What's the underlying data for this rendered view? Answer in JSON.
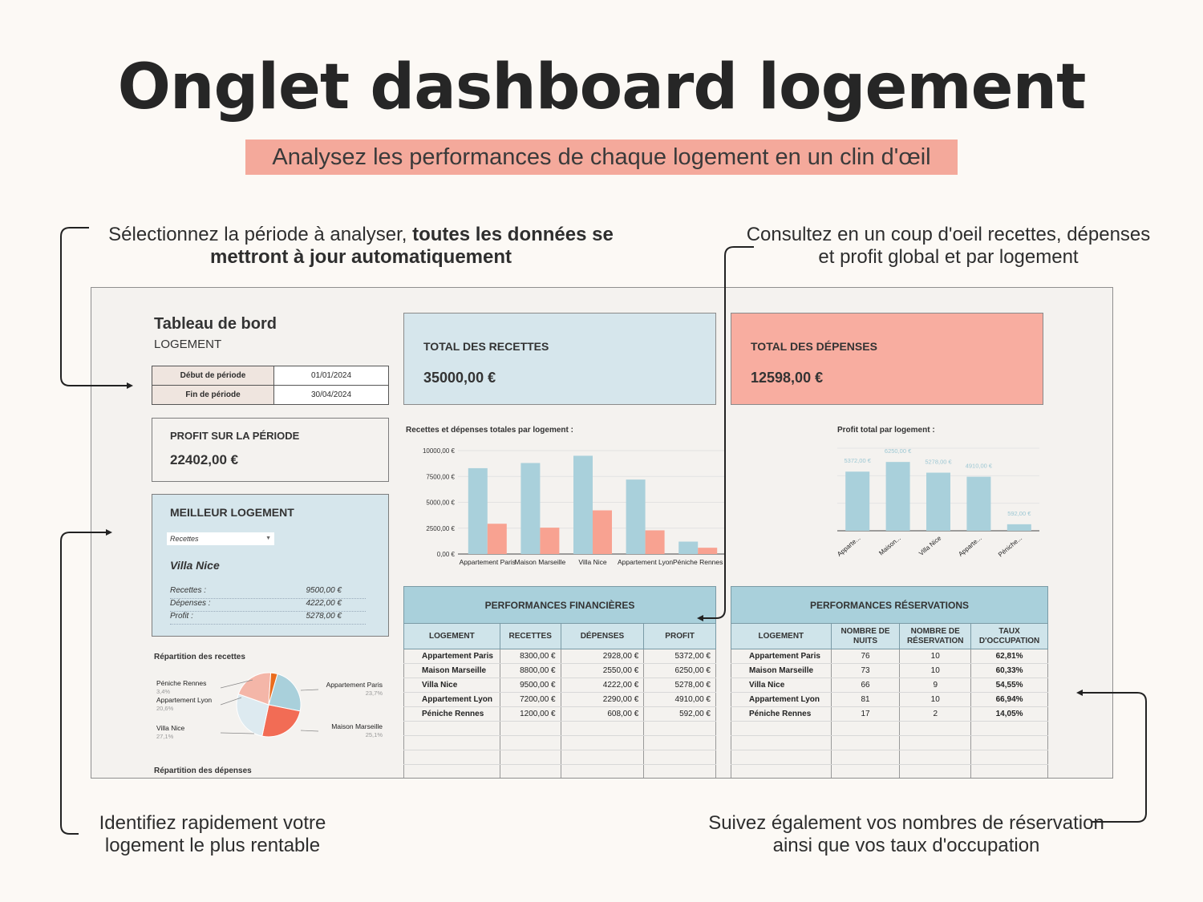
{
  "header": {
    "title": "Onglet dashboard logement",
    "subtitle": "Analysez les performances de chaque logement en un clin d'œil"
  },
  "notes": {
    "top_left_plain": "Sélectionnez la période à analyser, ",
    "top_left_bold": "toutes les données se mettront à jour automatiquement",
    "top_right": "Consultez en un coup d'oeil recettes, dépenses et profit global et par logement",
    "bottom_left": "Identifiez rapidement votre logement le plus rentable",
    "bottom_right": "Suivez également vos nombres de réservation ainsi que vos taux d'occupation"
  },
  "sheet": {
    "title": "Tableau de bord",
    "subtitle": "LOGEMENT",
    "period": {
      "start_label": "Début de période",
      "start_value": "01/01/2024",
      "end_label": "Fin de période",
      "end_value": "30/04/2024"
    },
    "profit": {
      "label": "PROFIT SUR LA PÉRIODE",
      "value": "22402,00 €"
    },
    "best": {
      "label": "MEILLEUR LOGEMENT",
      "select_value": "Recettes",
      "name": "Villa Nice",
      "rows": [
        {
          "label": "Recettes :",
          "value": "9500,00 €"
        },
        {
          "label": "Dépenses :",
          "value": "4222,00 €"
        },
        {
          "label": "Profit :",
          "value": "5278,00 €"
        }
      ]
    },
    "totals": {
      "recettes_label": "TOTAL DES RECETTES",
      "recettes_value": "35000,00 €",
      "depenses_label": "TOTAL DES DÉPENSES",
      "depenses_value": "12598,00 €"
    },
    "pie_title": "Répartition des recettes",
    "depenses_title": "Répartition des dépenses",
    "financial_table": {
      "title": "PERFORMANCES FINANCIÈRES",
      "headers": [
        "LOGEMENT",
        "RECETTES",
        "DÉPENSES",
        "PROFIT"
      ],
      "rows": [
        [
          "Appartement Paris",
          "8300,00 €",
          "2928,00 €",
          "5372,00 €"
        ],
        [
          "Maison Marseille",
          "8800,00 €",
          "2550,00 €",
          "6250,00 €"
        ],
        [
          "Villa Nice",
          "9500,00 €",
          "4222,00 €",
          "5278,00 €"
        ],
        [
          "Appartement Lyon",
          "7200,00 €",
          "2290,00 €",
          "4910,00 €"
        ],
        [
          "Péniche Rennes",
          "1200,00 €",
          "608,00 €",
          "592,00 €"
        ]
      ]
    },
    "reservation_table": {
      "title": "PERFORMANCES RÉSERVATIONS",
      "headers": [
        "LOGEMENT",
        "NOMBRE DE NUITS",
        "NOMBRE DE RÉSERVATION",
        "TAUX D'OCCUPATION"
      ],
      "rows": [
        [
          "Appartement Paris",
          "76",
          "10",
          "62,81%"
        ],
        [
          "Maison Marseille",
          "73",
          "10",
          "60,33%"
        ],
        [
          "Villa Nice",
          "66",
          "9",
          "54,55%"
        ],
        [
          "Appartement Lyon",
          "81",
          "10",
          "66,94%"
        ],
        [
          "Péniche Rennes",
          "17",
          "2",
          "14,05%"
        ]
      ]
    }
  },
  "colors": {
    "recettes": "#a9d0db",
    "depenses": "#f8a291",
    "best_card": "#d6e6ec",
    "total_depenses": "#f8ada0",
    "pie": [
      "#a9d0db",
      "#f8a291",
      "#ddeaf0",
      "#f26c55",
      "#f4b6a8",
      "#e96c1e"
    ]
  },
  "chart_data": [
    {
      "type": "bar",
      "title": "Recettes et dépenses totales par logement :",
      "categories": [
        "Appartement Paris",
        "Maison Marseille",
        "Villa Nice",
        "Appartement Lyon",
        "Péniche Rennes"
      ],
      "series": [
        {
          "values": [
            8300,
            8800,
            9500,
            7200,
            1200
          ]
        },
        {
          "values": [
            2928,
            2550,
            4222,
            2290,
            608
          ]
        }
      ],
      "yticks": [
        "0,00 €",
        "2500,00 €",
        "5000,00 €",
        "7500,00 €",
        "10000,00 €"
      ],
      "ylim": [
        0,
        10000
      ]
    },
    {
      "type": "bar",
      "title": "Profit total par logement :",
      "categories": [
        "Apparte...",
        "Maison...",
        "Villa Nice",
        "Apparte...",
        "Péniche..."
      ],
      "values": [
        5372,
        6250,
        5278,
        4910,
        592
      ],
      "data_labels": [
        "5372,00 €",
        "6250,00 €",
        "5278,00 €",
        "4910,00 €",
        "592,00 €"
      ],
      "ylim": [
        0,
        7500
      ]
    },
    {
      "type": "pie",
      "title": "Répartition des recettes",
      "labels": [
        "Appartement Paris",
        "Maison Marseille",
        "Villa Nice",
        "Appartement Lyon",
        "Péniche Rennes"
      ],
      "values": [
        23.7,
        25.1,
        27.1,
        20.6,
        3.4
      ],
      "value_labels": [
        "23,7%",
        "25,1%",
        "27,1%",
        "20,6%",
        "3,4%"
      ]
    }
  ]
}
